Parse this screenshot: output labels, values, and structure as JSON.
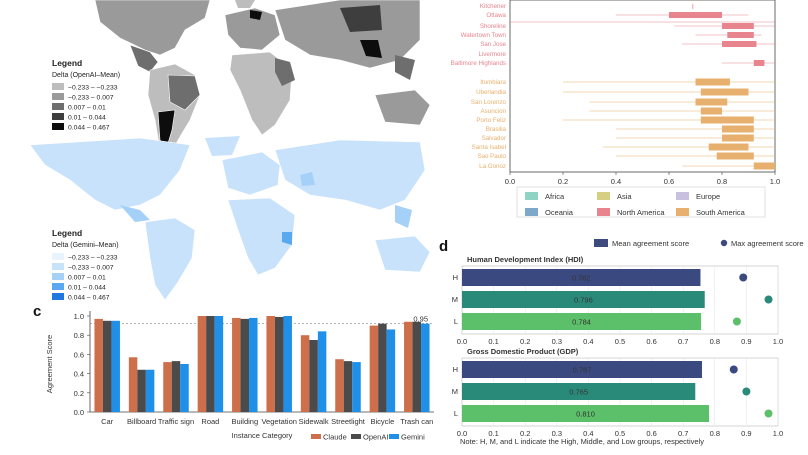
{
  "colors": {
    "claude": "#cd6f4a",
    "openai": "#4b4b4b",
    "gemini": "#1f8fe8",
    "hdi_mean": "#3d4a7e",
    "hdi_max": "#3d4a7e",
    "bar_H": "#3a4a80",
    "bar_M": "#2a8a7a",
    "bar_L": "#5cbf6a",
    "north_america": "#e7848e",
    "south_america": "#e8b06e",
    "africa": "#8fd3c4",
    "asia": "#d4cf82",
    "europe": "#c8c0de",
    "oceania": "#7fa7c9"
  },
  "map_legends": {
    "openai": {
      "title": "Legend",
      "subtitle": "Delta (OpenAI–Mean)",
      "items": [
        "−0.233 – −0.233",
        "−0.233 – 0.007",
        "0.007 – 0.01",
        "0.01 – 0.044",
        "0.044 – 0.467"
      ],
      "swatches": [
        "#bdbdbd",
        "#9a9a9a",
        "#6e6e6e",
        "#3e3e3e",
        "#0d0d0d"
      ]
    },
    "gemini": {
      "title": "Legend",
      "subtitle": "Delta (Gemini–Mean)",
      "items": [
        "−0.233 – −0.233",
        "−0.233 – 0.007",
        "0.007 – 0.01",
        "0.01 – 0.044",
        "0.044 – 0.467"
      ],
      "swatches": [
        "#e9f3fd",
        "#c8e2fb",
        "#a5d0f8",
        "#5aa9f0",
        "#1f78e0"
      ]
    }
  },
  "panel_b": {
    "cities_top": [
      {
        "name": "Kitchener",
        "region": "north_america"
      },
      {
        "name": "Ottawa",
        "region": "north_america"
      },
      {
        "name": "Shoreline",
        "region": "north_america"
      },
      {
        "name": "Watertown Town",
        "region": "north_america"
      },
      {
        "name": "San Jose",
        "region": "north_america"
      },
      {
        "name": "Livermore",
        "region": "north_america"
      },
      {
        "name": "Baltimore Highlands",
        "region": "north_america"
      }
    ],
    "cities_bottom": [
      {
        "name": "Itumbiara",
        "region": "south_america"
      },
      {
        "name": "Uberlandia",
        "region": "south_america"
      },
      {
        "name": "San Lorenzo",
        "region": "south_america"
      },
      {
        "name": "Asuncion",
        "region": "south_america"
      },
      {
        "name": "Porto Feliz",
        "region": "south_america"
      },
      {
        "name": "Brasilia",
        "region": "south_america"
      },
      {
        "name": "Salvador",
        "region": "south_america"
      },
      {
        "name": "Santa Isabel",
        "region": "south_america"
      },
      {
        "name": "Sao Paulo",
        "region": "south_america"
      },
      {
        "name": "La Gonoz",
        "region": "south_america"
      }
    ],
    "x_ticks": [
      "0.0",
      "0.2",
      "0.4",
      "0.6",
      "0.8",
      "1.0"
    ],
    "legend": [
      {
        "label": "Africa",
        "key": "africa"
      },
      {
        "label": "Asia",
        "key": "asia"
      },
      {
        "label": "Europe",
        "key": "europe"
      },
      {
        "label": "Oceania",
        "key": "oceania"
      },
      {
        "label": "North America",
        "key": "north_america"
      },
      {
        "label": "South America",
        "key": "south_america"
      }
    ]
  },
  "chart_data": [
    {
      "type": "bar",
      "panel": "c",
      "categories": [
        "Car",
        "Billboard",
        "Traffic sign",
        "Road",
        "Building",
        "Vegetation",
        "Sidewalk",
        "Streetlight",
        "Bicycle",
        "Trash can"
      ],
      "series": [
        {
          "name": "Claude",
          "values": [
            0.97,
            0.57,
            0.52,
            1.0,
            0.98,
            1.0,
            0.8,
            0.55,
            0.9,
            0.94
          ]
        },
        {
          "name": "OpenAI",
          "values": [
            0.95,
            0.44,
            0.53,
            1.0,
            0.97,
            0.99,
            0.75,
            0.53,
            0.92,
            0.94
          ]
        },
        {
          "name": "Gemini",
          "values": [
            0.95,
            0.44,
            0.5,
            1.0,
            0.98,
            1.0,
            0.84,
            0.52,
            0.86,
            0.92
          ]
        }
      ],
      "xlabel": "Instance Category",
      "ylabel": "Agreement Score",
      "ylim": [
        0,
        1.0
      ],
      "yticks": [
        "0.0",
        "0.2",
        "0.4",
        "0.6",
        "0.8",
        "1.0"
      ],
      "reference_line": {
        "value": 0.95,
        "label": "0.95"
      },
      "panel_label": "c"
    },
    {
      "type": "bar",
      "panel": "d",
      "panel_label": "d",
      "legend": [
        "Mean agreement score",
        "Max agreement score"
      ],
      "groups": [
        {
          "title": "Human Development Index (HDI)",
          "categories": [
            "H",
            "M",
            "L"
          ],
          "mean": [
            0.782,
            0.796,
            0.784
          ],
          "mean_labels": [
            "0.782",
            "0.796",
            "0.784"
          ],
          "max": [
            0.89,
            0.97,
            0.87
          ]
        },
        {
          "title": "Gross Domestic Product (GDP)",
          "categories": [
            "H",
            "M",
            "L"
          ],
          "mean": [
            0.787,
            0.765,
            0.81
          ],
          "mean_labels": [
            "0.787",
            "0.765",
            "0.810"
          ],
          "max": [
            0.86,
            0.9,
            0.97
          ]
        }
      ],
      "x_ticks": [
        "0.0",
        "0.1",
        "0.2",
        "0.3",
        "0.4",
        "0.5",
        "0.6",
        "0.7",
        "0.8",
        "0.9",
        "1.0"
      ],
      "xlim": [
        0,
        1.0
      ],
      "note": "Note: H, M, and L indicate the High, Middle, and Low groups, respectively"
    }
  ]
}
